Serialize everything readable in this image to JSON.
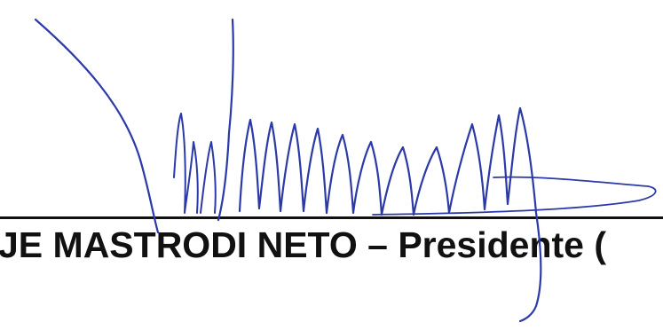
{
  "document": {
    "signatory_line": "JE MASTRODI NETO – Presidente (",
    "signature_ink_color": "#2b3aa8",
    "text_color": "#111111",
    "background_color": "#ffffff"
  }
}
